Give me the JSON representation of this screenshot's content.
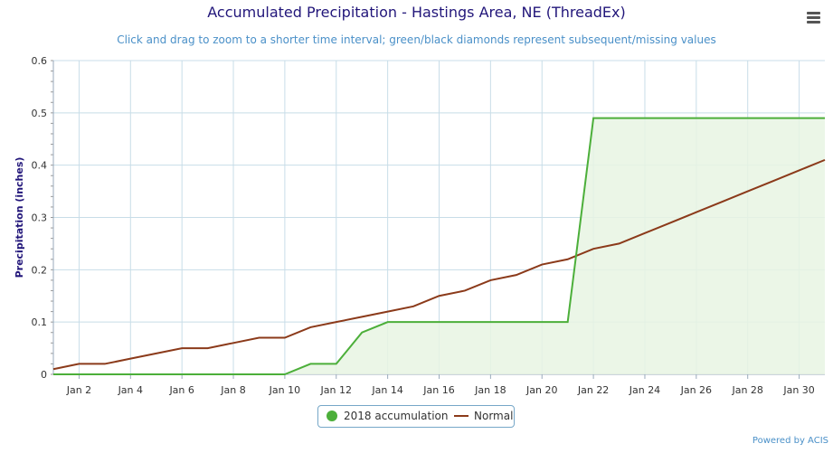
{
  "title": "Accumulated Precipitation - Hastings Area, NE (ThreadEx)",
  "subtitle": "Click and drag to zoom to a shorter time interval; green/black diamonds represent subsequent/missing values",
  "credits": "Powered by ACIS",
  "menu_icon": "hamburger-menu-icon",
  "chart_data": {
    "type": "line",
    "title": "Accumulated Precipitation - Hastings Area, NE (ThreadEx)",
    "ylabel": "Precipitation (inches)",
    "xlabel": "",
    "ylim": [
      0,
      0.6
    ],
    "yticks": [
      "0",
      "0.1",
      "0.2",
      "0.3",
      "0.4",
      "0.5",
      "0.6"
    ],
    "xlim": [
      1,
      31
    ],
    "xticks": [
      {
        "day": 2,
        "label": "Jan 2"
      },
      {
        "day": 4,
        "label": "Jan 4"
      },
      {
        "day": 6,
        "label": "Jan 6"
      },
      {
        "day": 8,
        "label": "Jan 8"
      },
      {
        "day": 10,
        "label": "Jan 10"
      },
      {
        "day": 12,
        "label": "Jan 12"
      },
      {
        "day": 14,
        "label": "Jan 14"
      },
      {
        "day": 16,
        "label": "Jan 16"
      },
      {
        "day": 18,
        "label": "Jan 18"
      },
      {
        "day": 20,
        "label": "Jan 20"
      },
      {
        "day": 22,
        "label": "Jan 22"
      },
      {
        "day": 24,
        "label": "Jan 24"
      },
      {
        "day": 26,
        "label": "Jan 26"
      },
      {
        "day": 28,
        "label": "Jan 28"
      },
      {
        "day": 30,
        "label": "Jan 30"
      }
    ],
    "x": [
      1,
      2,
      3,
      4,
      5,
      6,
      7,
      8,
      9,
      10,
      11,
      12,
      13,
      14,
      15,
      16,
      17,
      18,
      19,
      20,
      21,
      22,
      23,
      24,
      25,
      26,
      27,
      28,
      29,
      30,
      31
    ],
    "grid": true,
    "legend_position": "bottom-center",
    "series": [
      {
        "name": "2018 accumulation",
        "color": "#4caf3a",
        "fill": "#e8f5e3",
        "values": [
          0,
          0,
          0,
          0,
          0,
          0,
          0,
          0,
          0,
          0,
          0.02,
          0.02,
          0.08,
          0.1,
          0.1,
          0.1,
          0.1,
          0.1,
          0.1,
          0.1,
          0.1,
          0.49,
          0.49,
          0.49,
          0.49,
          0.49,
          0.49,
          0.49,
          0.49,
          0.49,
          0.49
        ]
      },
      {
        "name": "Normal",
        "color": "#8b3a1a",
        "values": [
          0.01,
          0.02,
          0.02,
          0.03,
          0.04,
          0.05,
          0.05,
          0.06,
          0.07,
          0.07,
          0.09,
          0.1,
          0.11,
          0.12,
          0.13,
          0.15,
          0.16,
          0.18,
          0.19,
          0.21,
          0.22,
          0.24,
          0.25,
          0.27,
          0.29,
          0.31,
          0.33,
          0.35,
          0.37,
          0.39,
          0.41
        ]
      }
    ]
  }
}
